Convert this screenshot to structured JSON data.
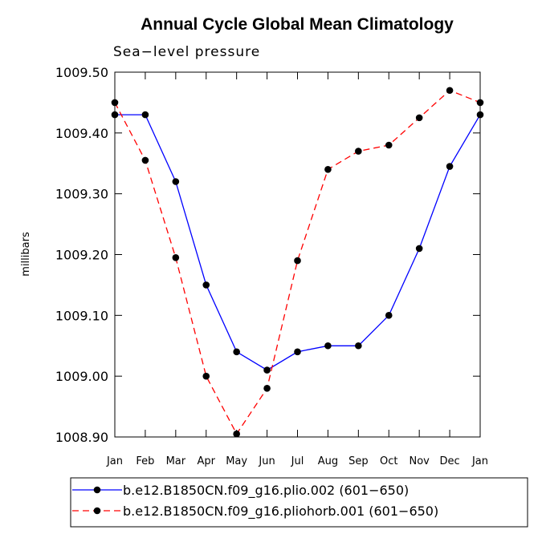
{
  "chart_data": {
    "type": "line",
    "title": "Annual Cycle Global Mean Climatology",
    "subtitle": "Sea−level pressure",
    "ylabel": "millibars",
    "xlabel": "",
    "categories": [
      "Jan",
      "Feb",
      "Mar",
      "Apr",
      "May",
      "Jun",
      "Jul",
      "Aug",
      "Sep",
      "Oct",
      "Nov",
      "Dec",
      "Jan"
    ],
    "ylim": [
      1008.9,
      1009.5
    ],
    "yticks": [
      "1008.90",
      "1009.00",
      "1009.10",
      "1009.20",
      "1009.30",
      "1009.40",
      "1009.50"
    ],
    "grid": false,
    "legend_position": "bottom",
    "series": [
      {
        "name": "b.e12.B1850CN.f09_g16.plio.002 (601−650)",
        "color": "#0000ff",
        "dash": "solid",
        "marker": "dot",
        "values": [
          1009.43,
          1009.43,
          1009.32,
          1009.15,
          1009.04,
          1009.01,
          1009.04,
          1009.05,
          1009.05,
          1009.1,
          1009.21,
          1009.345,
          1009.43
        ]
      },
      {
        "name": "b.e12.B1850CN.f09_g16.pliohorb.001 (601−650)",
        "color": "#ff0000",
        "dash": "dashed",
        "marker": "dot",
        "values": [
          1009.45,
          1009.355,
          1009.195,
          1009.0,
          1008.905,
          1008.98,
          1009.19,
          1009.34,
          1009.37,
          1009.38,
          1009.425,
          1009.47,
          1009.45
        ]
      }
    ]
  }
}
